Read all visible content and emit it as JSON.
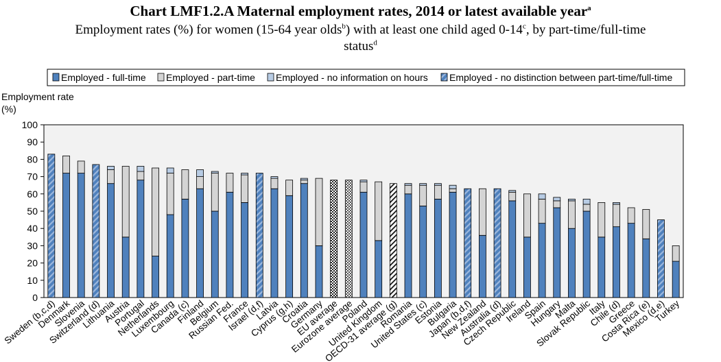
{
  "header": {
    "title": "Chart LMF1.2.A Maternal employment rates, 2014 or latest available year",
    "title_sup": "a",
    "subtitle_p1": "Employment rates (%) for women (15-64 year olds",
    "subtitle_sup1": "b",
    "subtitle_p2": ") with at least one child aged 0-14",
    "subtitle_sup2": "c",
    "subtitle_p3": ", by part-time/full-time",
    "subtitle_p4": "status",
    "subtitle_sup3": "d"
  },
  "colors": {
    "fulltime": "#4f81bd",
    "parttime": "#d4d4d4",
    "noinfo": "#b8cce4",
    "plot_bg": "#f2f2f2",
    "border": "#000000"
  },
  "chart_data": {
    "type": "bar",
    "stacked": true,
    "title": "Chart LMF1.2.A Maternal employment rates, 2014 or latest available year",
    "ylabel_line1": "Employment rate",
    "ylabel_line2": "(%)",
    "ylim": [
      0,
      100
    ],
    "yticks": [
      "0",
      "10",
      "20",
      "30",
      "40",
      "50",
      "60",
      "70",
      "80",
      "90",
      "100"
    ],
    "legend": [
      "Employed - full-time",
      "Employed - part-time",
      "Employed - no information on hours",
      "Employed - no distinction between part-time/full-time"
    ],
    "categories": [
      "Sweden (b,c,d)",
      "Denmark",
      "Slovenia",
      "Switzerland (d)",
      "Lithuania",
      "Austria",
      "Portugal",
      "Netherlands",
      "Luxembourg",
      "Canada (c)",
      "Finland",
      "Belgium",
      "Russian Fed.",
      "France",
      "Israel (d,f)",
      "Latvia",
      "Cyprus (g,h)",
      "Croatia",
      "Germany",
      "EU average",
      "Eurozone average",
      "Poland",
      "United Kingdom",
      "OECD-31 average (g)",
      "Romania",
      "United States (c)",
      "Estonia",
      "Bulgaria",
      "Japan (b,d,f)",
      "New Zealand",
      "Australia (d)",
      "Czech Republic",
      "Ireland",
      "Spain",
      "Hungary",
      "Malta",
      "Slovak Republic",
      "Italy",
      "Chile (d)",
      "Greece",
      "Costa Rica (e)",
      "Mexico (d,e)",
      "Turkey"
    ],
    "kinds": [
      "nd",
      "s",
      "s",
      "nd",
      "s",
      "s",
      "s",
      "s",
      "s",
      "s",
      "s",
      "s",
      "s",
      "s",
      "nd",
      "s",
      "s",
      "s",
      "s",
      "eu",
      "ez",
      "s",
      "s",
      "oecd",
      "s",
      "s",
      "s",
      "s",
      "nd",
      "s",
      "nd",
      "s",
      "s",
      "s",
      "s",
      "s",
      "s",
      "s",
      "s",
      "s",
      "s",
      "nd",
      "s"
    ],
    "series": [
      {
        "name": "Employed - full-time",
        "values": [
          0,
          72,
          72,
          0,
          66,
          35,
          68,
          24,
          48,
          57,
          63,
          50,
          61,
          55,
          0,
          63,
          59,
          66,
          30,
          0,
          0,
          61,
          33,
          0,
          60,
          53,
          57,
          61,
          0,
          36,
          0,
          56,
          35,
          43,
          52,
          40,
          50,
          35,
          41,
          43,
          34,
          0,
          21
        ]
      },
      {
        "name": "Employed - part-time",
        "values": [
          0,
          10,
          7,
          0,
          8,
          41,
          5,
          51,
          24,
          17,
          7,
          22,
          11,
          16,
          0,
          6,
          9,
          2,
          39,
          0,
          0,
          6,
          34,
          0,
          5,
          12,
          8,
          2,
          0,
          27,
          0,
          5,
          25,
          14,
          4,
          16,
          4,
          20,
          13,
          9,
          17,
          0,
          9
        ]
      },
      {
        "name": "Employed - no information on hours",
        "values": [
          0,
          0,
          0,
          0,
          2,
          0,
          3,
          0,
          3,
          0,
          4,
          1,
          0,
          1,
          0,
          1,
          0,
          1,
          0,
          0,
          0,
          1,
          0,
          0,
          1,
          1,
          1,
          2,
          0,
          0,
          0,
          1,
          0,
          3,
          2,
          1,
          3,
          0,
          1,
          0,
          0,
          0,
          0
        ]
      },
      {
        "name": "Employed - no distinction between part-time/full-time",
        "values": [
          83,
          0,
          0,
          77,
          0,
          0,
          0,
          0,
          0,
          0,
          0,
          0,
          0,
          0,
          72,
          0,
          0,
          0,
          0,
          68,
          68,
          0,
          0,
          66,
          0,
          0,
          0,
          0,
          63,
          0,
          63,
          0,
          0,
          0,
          0,
          0,
          0,
          0,
          0,
          0,
          0,
          45,
          0
        ]
      }
    ]
  }
}
